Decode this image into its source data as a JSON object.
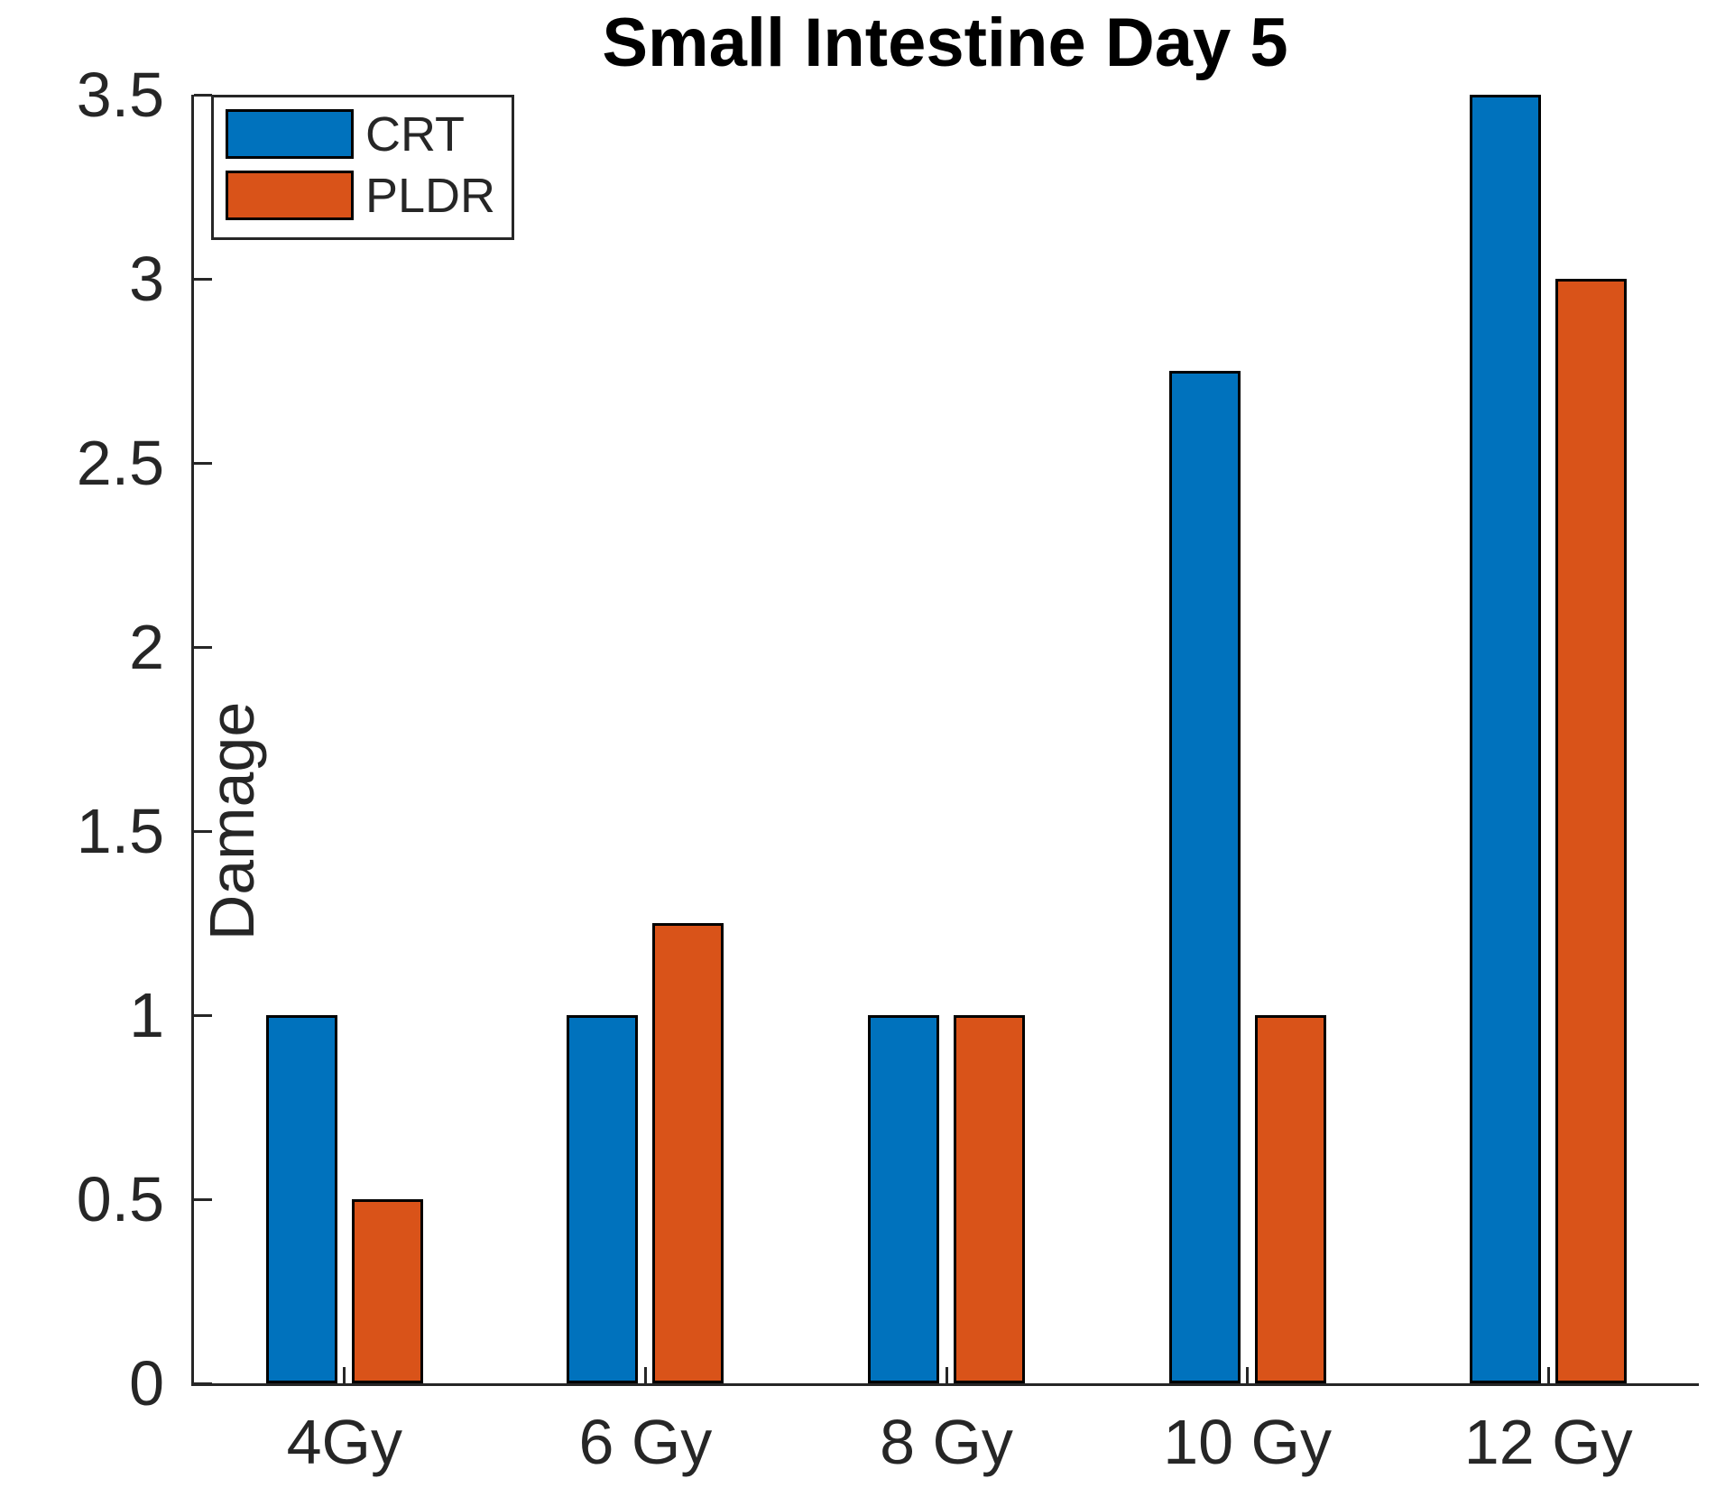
{
  "chart_data": {
    "type": "bar",
    "title": "Small Intestine Day 5",
    "xlabel": "",
    "ylabel": "Damage",
    "categories": [
      "4Gy",
      "6 Gy",
      "8 Gy",
      "10 Gy",
      "12 Gy"
    ],
    "series": [
      {
        "name": "CRT",
        "color": "#0072BD",
        "values": [
          1,
          1,
          1,
          2.75,
          3.5
        ]
      },
      {
        "name": "PLDR",
        "color": "#D95319",
        "values": [
          0.5,
          1.25,
          1,
          1,
          3
        ]
      }
    ],
    "ylim": [
      0,
      3.5
    ],
    "yticks": [
      0,
      0.5,
      1,
      1.5,
      2,
      2.5,
      3,
      3.5
    ],
    "grid": false,
    "legend_position": "top-left",
    "axis_color": "#262626",
    "bar_edge_color": "#000000"
  }
}
